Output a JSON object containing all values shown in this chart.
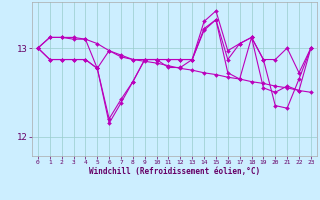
{
  "background_color": "#cceeff",
  "grid_color": "#99cccc",
  "line_color": "#bb00bb",
  "xlabel": "Windchill (Refroidissement éolien,°C)",
  "xlim": [
    -0.5,
    23.5
  ],
  "ylim": [
    11.78,
    13.52
  ],
  "yticks": [
    12,
    13
  ],
  "xticks": [
    0,
    1,
    2,
    3,
    4,
    5,
    6,
    7,
    8,
    9,
    10,
    11,
    12,
    13,
    14,
    15,
    16,
    17,
    18,
    19,
    20,
    21,
    22,
    23
  ],
  "figsize": [
    3.2,
    2.0
  ],
  "dpi": 100,
  "series": [
    [
      13.0,
      12.87,
      12.87,
      12.87,
      12.87,
      12.77,
      12.2,
      12.42,
      12.62,
      12.87,
      12.87,
      12.87,
      12.87,
      12.87,
      13.2,
      13.32,
      12.87,
      13.05,
      13.12,
      12.87,
      12.87,
      13.0,
      12.72,
      13.0
    ],
    [
      13.0,
      13.12,
      13.12,
      13.12,
      13.1,
      13.05,
      12.97,
      12.9,
      12.87,
      12.85,
      12.83,
      12.8,
      12.77,
      12.75,
      12.72,
      12.7,
      12.67,
      12.65,
      12.62,
      12.6,
      12.57,
      12.55,
      12.52,
      12.5
    ],
    [
      13.0,
      13.12,
      13.12,
      13.1,
      13.1,
      12.77,
      12.97,
      12.92,
      12.87,
      12.87,
      12.87,
      12.87,
      12.87,
      12.87,
      13.22,
      13.32,
      12.72,
      12.65,
      13.12,
      12.55,
      12.5,
      12.57,
      12.52,
      13.0
    ],
    [
      13.0,
      12.87,
      12.87,
      12.87,
      12.87,
      12.77,
      12.15,
      12.38,
      12.62,
      12.87,
      12.87,
      12.78,
      12.78,
      12.87,
      13.3,
      13.42,
      12.97,
      13.05,
      13.12,
      12.87,
      12.35,
      12.32,
      12.65,
      13.0
    ]
  ]
}
